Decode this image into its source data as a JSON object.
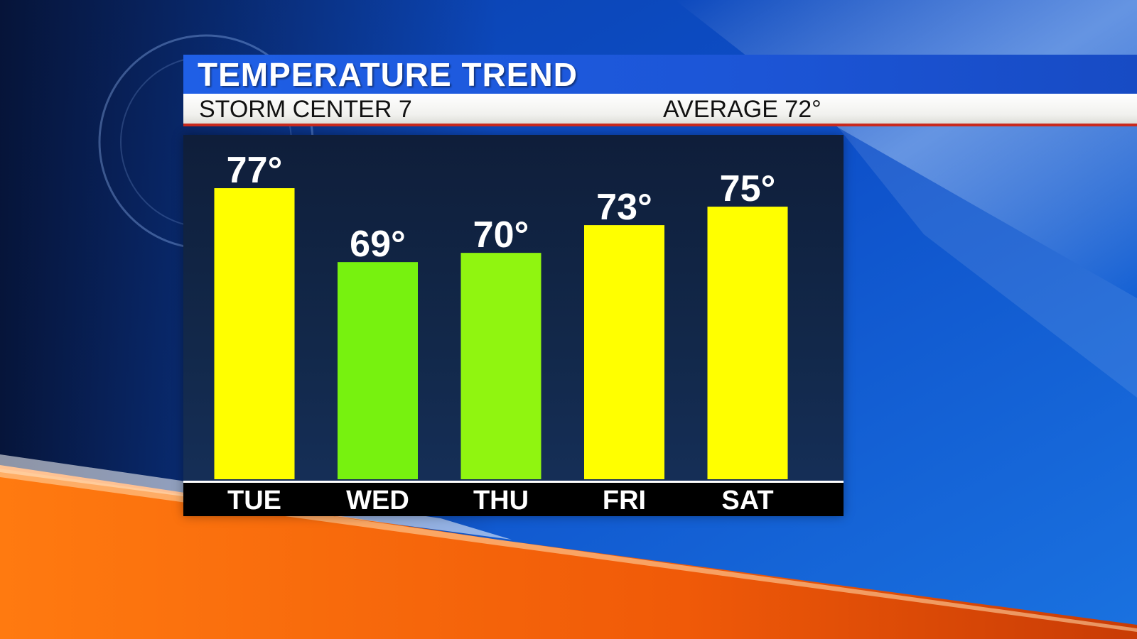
{
  "header": {
    "title": "TEMPERATURE TREND",
    "station": "STORM CENTER 7",
    "average": "AVERAGE 72°"
  },
  "colors": {
    "warm_bar": "#ffff00",
    "mild_bar": "#77f20f",
    "mild_bar_alt": "#90f510",
    "title_bar": "#1f5fe6",
    "accent_line": "#c92a1e"
  },
  "chart_data": {
    "type": "bar",
    "categories": [
      "TUE",
      "WED",
      "THU",
      "FRI",
      "SAT"
    ],
    "values": [
      77,
      69,
      70,
      73,
      75
    ],
    "value_labels": [
      "77°",
      "69°",
      "70°",
      "73°",
      "75°"
    ],
    "bar_colors": [
      "#ffff00",
      "#77f20f",
      "#90f510",
      "#ffff00",
      "#ffff00"
    ],
    "title": "TEMPERATURE TREND",
    "xlabel": "",
    "ylabel": "",
    "ylim": [
      45.5,
      80
    ],
    "grid": false,
    "legend": "none"
  }
}
